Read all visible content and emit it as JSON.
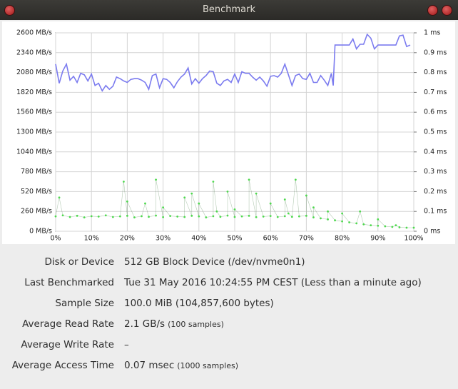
{
  "window": {
    "title": "Benchmark"
  },
  "chart_data": {
    "type": "line",
    "xlim": [
      0,
      100
    ],
    "xticks": [
      {
        "value": 0,
        "label": "0%"
      },
      {
        "value": 10,
        "label": "10%"
      },
      {
        "value": 20,
        "label": "20%"
      },
      {
        "value": 30,
        "label": "30%"
      },
      {
        "value": 40,
        "label": "40%"
      },
      {
        "value": 50,
        "label": "50%"
      },
      {
        "value": 60,
        "label": "60%"
      },
      {
        "value": 70,
        "label": "70%"
      },
      {
        "value": 80,
        "label": "80%"
      },
      {
        "value": 90,
        "label": "90%"
      },
      {
        "value": 100,
        "label": "100%"
      }
    ],
    "ylim": [
      0,
      2600
    ],
    "yticks": [
      {
        "value": 0,
        "label": "0 MB/s"
      },
      {
        "value": 260,
        "label": "260 MB/s"
      },
      {
        "value": 520,
        "label": "520 MB/s"
      },
      {
        "value": 780,
        "label": "780 MB/s"
      },
      {
        "value": 1040,
        "label": "1040 MB/s"
      },
      {
        "value": 1300,
        "label": "1300 MB/s"
      },
      {
        "value": 1560,
        "label": "1560 MB/s"
      },
      {
        "value": 1820,
        "label": "1820 MB/s"
      },
      {
        "value": 2080,
        "label": "2080 MB/s"
      },
      {
        "value": 2340,
        "label": "2340 MB/s"
      },
      {
        "value": 2600,
        "label": "2600 MB/s"
      }
    ],
    "y2lim": [
      0,
      1
    ],
    "y2ticks": [
      {
        "value": 0,
        "label": "0 ms"
      },
      {
        "value": 0.1,
        "label": "0.1 ms"
      },
      {
        "value": 0.2,
        "label": "0.2 ms"
      },
      {
        "value": 0.3,
        "label": "0.3 ms"
      },
      {
        "value": 0.4,
        "label": "0.4 ms"
      },
      {
        "value": 0.5,
        "label": "0.5 ms"
      },
      {
        "value": 0.6,
        "label": "0.6 ms"
      },
      {
        "value": 0.7,
        "label": "0.7 ms"
      },
      {
        "value": 0.8,
        "label": "0.8 ms"
      },
      {
        "value": 0.9,
        "label": "0.9 ms"
      },
      {
        "value": 1,
        "label": "1 ms"
      }
    ],
    "grid": true,
    "series": [
      {
        "type": "line",
        "color": "#7b7bef",
        "x": [
          0,
          1,
          2,
          3,
          4,
          5,
          6,
          7,
          8,
          9,
          10,
          11,
          12,
          13,
          14,
          15,
          16,
          17,
          18,
          19,
          20,
          21,
          22,
          23,
          24,
          25,
          26,
          27,
          28,
          29,
          30,
          31,
          32,
          33,
          34,
          35,
          36,
          37,
          38,
          39,
          40,
          41,
          42,
          43,
          44,
          45,
          46,
          47,
          48,
          49,
          50,
          51,
          52,
          53,
          54,
          55,
          56,
          57,
          58,
          59,
          60,
          61,
          62,
          63,
          64,
          65,
          66,
          67,
          68,
          69,
          70,
          71,
          72,
          73,
          74,
          75,
          76,
          77,
          77.5,
          78,
          80,
          82,
          83,
          84,
          85,
          86,
          87,
          88,
          89,
          90,
          93,
          95,
          96,
          97,
          98,
          99
        ],
        "values": [
          2190,
          1940,
          2100,
          2190,
          1980,
          2030,
          1950,
          2070,
          2050,
          1970,
          2060,
          1910,
          1940,
          1840,
          1910,
          1860,
          1900,
          2020,
          2000,
          1970,
          1950,
          1990,
          2000,
          2000,
          1980,
          1950,
          1860,
          2040,
          2060,
          1880,
          2000,
          1990,
          1950,
          1880,
          1960,
          2020,
          2060,
          2140,
          1930,
          2000,
          1940,
          2000,
          2040,
          2100,
          2090,
          1940,
          1910,
          1970,
          1990,
          1950,
          2060,
          1950,
          2090,
          2070,
          2070,
          2020,
          1980,
          2020,
          1970,
          1900,
          2030,
          2040,
          2020,
          2070,
          2190,
          2050,
          1910,
          2040,
          2060,
          2000,
          1990,
          2070,
          1950,
          1950,
          2040,
          1980,
          1910,
          2070,
          1910,
          2440,
          2440,
          2440,
          2520,
          2390,
          2450,
          2450,
          2580,
          2530,
          2390,
          2440,
          2440,
          2440,
          2560,
          2570,
          2420,
          2440
        ]
      },
      {
        "type": "scatter",
        "axis": "y2",
        "color": "#4fd94f",
        "x": [
          0,
          1,
          2,
          4,
          6,
          8,
          10,
          12,
          14,
          16,
          18,
          19,
          20,
          20,
          22,
          24,
          25,
          26,
          28,
          28,
          30,
          30,
          32,
          34,
          36,
          36,
          38,
          38,
          40,
          40,
          42,
          44,
          44,
          45,
          46,
          48,
          48,
          50,
          50,
          52,
          54,
          54,
          56,
          56,
          58,
          60,
          60,
          62,
          64,
          64,
          65,
          66,
          67,
          68,
          70,
          70,
          72,
          72,
          74,
          76,
          76,
          78,
          80,
          80,
          82,
          84,
          85,
          86,
          88,
          90,
          90,
          92,
          94,
          95,
          96,
          98,
          100
        ],
        "values": [
          0.075,
          0.17,
          0.08,
          0.072,
          0.078,
          0.07,
          0.076,
          0.074,
          0.08,
          0.072,
          0.075,
          0.25,
          0.078,
          0.15,
          0.07,
          0.076,
          0.14,
          0.073,
          0.079,
          0.26,
          0.071,
          0.12,
          0.077,
          0.074,
          0.072,
          0.17,
          0.078,
          0.19,
          0.075,
          0.14,
          0.07,
          0.076,
          0.25,
          0.1,
          0.073,
          0.079,
          0.2,
          0.072,
          0.11,
          0.075,
          0.078,
          0.26,
          0.071,
          0.19,
          0.074,
          0.077,
          0.14,
          0.072,
          0.076,
          0.16,
          0.09,
          0.073,
          0.26,
          0.075,
          0.078,
          0.18,
          0.07,
          0.12,
          0.065,
          0.06,
          0.1,
          0.055,
          0.05,
          0.09,
          0.045,
          0.04,
          0.1,
          0.035,
          0.03,
          0.028,
          0.06,
          0.025,
          0.022,
          0.03,
          0.02,
          0.018,
          0.018
        ]
      }
    ]
  },
  "details": {
    "rows": [
      {
        "label": "Disk or Device",
        "value": "512 GB Block Device (/dev/nvme0n1)"
      },
      {
        "label": "Last Benchmarked",
        "value": "Tue 31 May 2016 10:24:55 PM CEST (Less than a minute ago)"
      },
      {
        "label": "Sample Size",
        "value": "100.0 MiB (104,857,600 bytes)"
      },
      {
        "label": "Average Read Rate",
        "value": "2.1 GB/s",
        "note": "(100 samples)"
      },
      {
        "label": "Average Write Rate",
        "value": "–"
      },
      {
        "label": "Average Access Time",
        "value": "0.07 msec",
        "note": "(1000 samples)"
      }
    ]
  }
}
